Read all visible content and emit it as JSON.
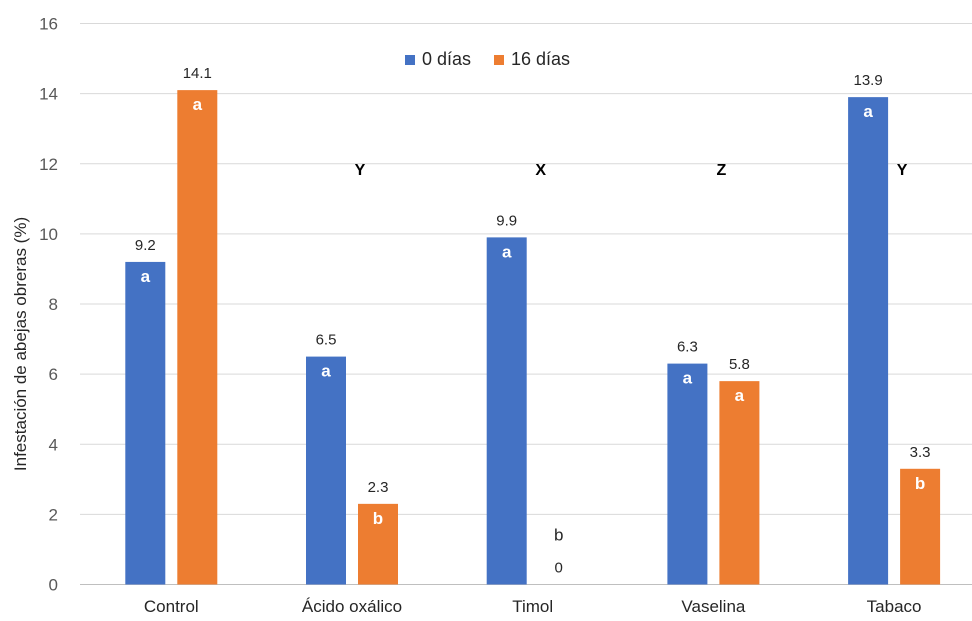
{
  "chart_data": {
    "type": "bar",
    "title": "",
    "xlabel": "",
    "ylabel": "Infestación de abejas obreras (%)",
    "ylim": [
      0,
      16
    ],
    "yticks": [
      0,
      2,
      4,
      6,
      8,
      10,
      12,
      14,
      16
    ],
    "grid": true,
    "legend_position": "top",
    "categories": [
      "Control",
      "Ácido oxálico",
      "Timol",
      "Vaselina",
      "Tabaco"
    ],
    "series": [
      {
        "name": "0 días",
        "color": "#4472C4",
        "values": [
          9.2,
          6.5,
          9.9,
          6.3,
          13.9
        ],
        "data_labels": [
          "9.2",
          "6.5",
          "9.9",
          "6.3",
          "13.9"
        ],
        "letters": [
          "a",
          "a",
          "a",
          "a",
          "a"
        ]
      },
      {
        "name": "16 días",
        "color": "#ED7D31",
        "values": [
          14.1,
          2.3,
          0,
          5.8,
          3.3
        ],
        "data_labels": [
          "14.1",
          "2.3",
          "0",
          "5.8",
          "3.3"
        ],
        "letters": [
          "a",
          "b",
          "b",
          "a",
          "b"
        ]
      }
    ],
    "group_letters": [
      "",
      "Y",
      "X",
      "Z",
      "Y"
    ],
    "group_letter_value": 11.85
  }
}
